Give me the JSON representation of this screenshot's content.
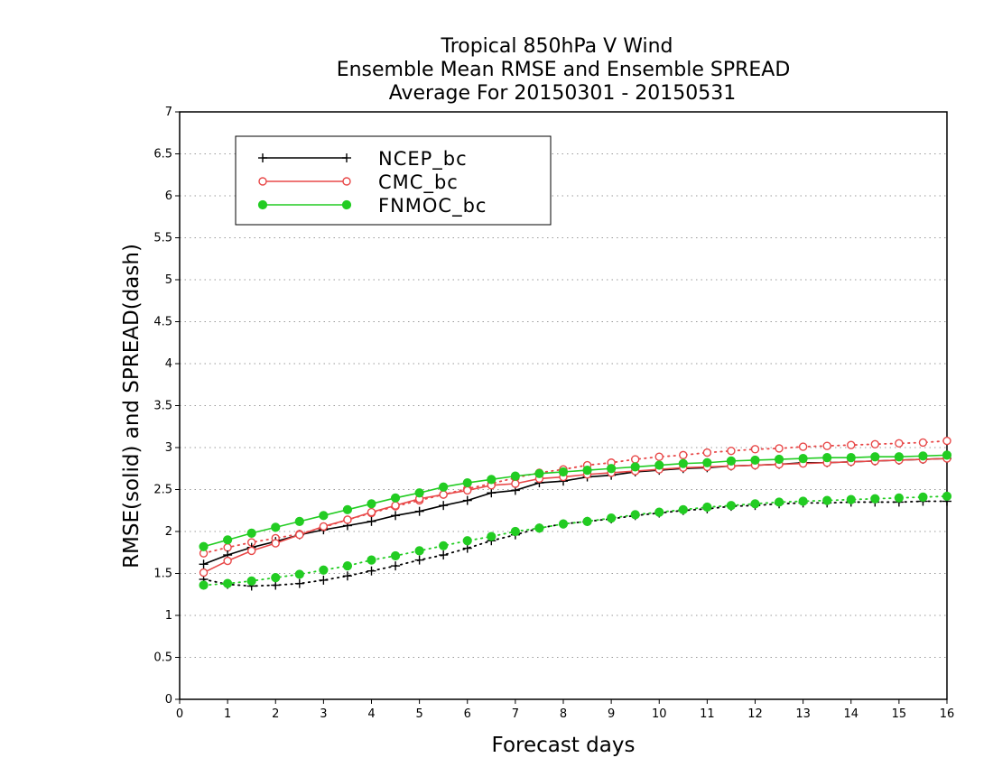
{
  "chart_data": {
    "type": "line",
    "title_lines": [
      "Tropical 850hPa V Wind",
      "Ensemble Mean RMSE and Ensemble SPREAD",
      "Average For 20150301 - 20150531"
    ],
    "xlabel": "Forecast days",
    "ylabel": "RMSE(solid) and SPREAD(dash)",
    "xlim": [
      0,
      16
    ],
    "ylim": [
      0,
      7
    ],
    "x_ticks": [
      0,
      1,
      2,
      3,
      4,
      5,
      6,
      7,
      8,
      9,
      10,
      11,
      12,
      13,
      14,
      15,
      16
    ],
    "y_ticks": [
      0,
      0.5,
      1,
      1.5,
      2,
      2.5,
      3,
      3.5,
      4,
      4.5,
      5,
      5.5,
      6,
      6.5,
      7
    ],
    "grid": "horizontal dotted",
    "legend_position": "top-left",
    "x": [
      0.5,
      1,
      1.5,
      2,
      2.5,
      3,
      3.5,
      4,
      4.5,
      5,
      5.5,
      6,
      6.5,
      7,
      7.5,
      8,
      8.5,
      9,
      9.5,
      10,
      10.5,
      11,
      11.5,
      12,
      12.5,
      13,
      13.5,
      14,
      14.5,
      15,
      15.5,
      16
    ],
    "series": [
      {
        "name": "NCEP_bc",
        "color": "#000000",
        "marker": "plus",
        "rmse": [
          1.61,
          1.72,
          1.81,
          1.88,
          1.96,
          2.02,
          2.07,
          2.12,
          2.19,
          2.24,
          2.31,
          2.37,
          2.46,
          2.49,
          2.58,
          2.6,
          2.65,
          2.67,
          2.71,
          2.73,
          2.75,
          2.76,
          2.78,
          2.79,
          2.8,
          2.82,
          2.82,
          2.83,
          2.84,
          2.85,
          2.86,
          2.87
        ],
        "spread": [
          1.43,
          1.37,
          1.35,
          1.36,
          1.38,
          1.42,
          1.47,
          1.53,
          1.59,
          1.66,
          1.72,
          1.8,
          1.89,
          1.96,
          2.04,
          2.09,
          2.12,
          2.15,
          2.19,
          2.22,
          2.25,
          2.27,
          2.3,
          2.31,
          2.33,
          2.34,
          2.34,
          2.35,
          2.35,
          2.35,
          2.36,
          2.36
        ]
      },
      {
        "name": "CMC_bc",
        "color": "#e84848",
        "marker": "open-circle",
        "rmse": [
          1.51,
          1.65,
          1.77,
          1.86,
          1.96,
          2.06,
          2.14,
          2.23,
          2.31,
          2.39,
          2.44,
          2.49,
          2.55,
          2.57,
          2.63,
          2.65,
          2.68,
          2.7,
          2.72,
          2.74,
          2.76,
          2.77,
          2.78,
          2.79,
          2.8,
          2.81,
          2.82,
          2.83,
          2.84,
          2.85,
          2.86,
          2.87
        ],
        "spread": [
          1.74,
          1.81,
          1.87,
          1.92,
          1.97,
          2.05,
          2.14,
          2.22,
          2.3,
          2.37,
          2.44,
          2.51,
          2.57,
          2.64,
          2.7,
          2.74,
          2.79,
          2.82,
          2.86,
          2.89,
          2.91,
          2.94,
          2.96,
          2.98,
          2.99,
          3.01,
          3.02,
          3.03,
          3.04,
          3.05,
          3.06,
          3.08
        ]
      },
      {
        "name": "FNMOC_bc",
        "color": "#22cc22",
        "marker": "filled-circle",
        "rmse": [
          1.82,
          1.9,
          1.98,
          2.05,
          2.12,
          2.19,
          2.26,
          2.33,
          2.4,
          2.46,
          2.53,
          2.58,
          2.62,
          2.66,
          2.69,
          2.71,
          2.73,
          2.75,
          2.77,
          2.79,
          2.81,
          2.82,
          2.84,
          2.85,
          2.86,
          2.87,
          2.88,
          2.88,
          2.89,
          2.89,
          2.9,
          2.91
        ],
        "spread": [
          1.36,
          1.38,
          1.41,
          1.45,
          1.49,
          1.54,
          1.59,
          1.66,
          1.71,
          1.77,
          1.83,
          1.89,
          1.94,
          2.0,
          2.04,
          2.09,
          2.12,
          2.16,
          2.2,
          2.23,
          2.26,
          2.29,
          2.31,
          2.33,
          2.35,
          2.36,
          2.37,
          2.38,
          2.39,
          2.4,
          2.41,
          2.42
        ]
      }
    ]
  }
}
